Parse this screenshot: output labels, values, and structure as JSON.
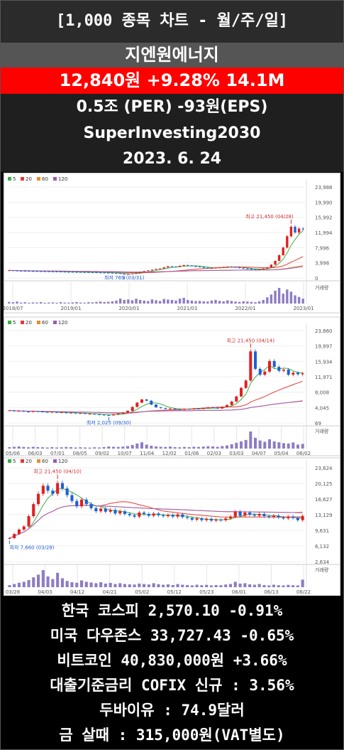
{
  "header": {
    "title": "[1,000 종목 차트 - 월/주/일]"
  },
  "stock": {
    "name": "지엔원에너지",
    "price_line": "12,840원  +9.28%  14.1M",
    "per_line": "0.5조  (PER)  -93원(EPS)",
    "channel": "SuperInvesting2030",
    "date": "2023. 6. 24"
  },
  "colors": {
    "up": "#e02020",
    "down": "#1f5fd6",
    "ma5": "#3cb043",
    "ma20": "#e53935",
    "ma60": "#f08a24",
    "ma120": "#9b59b6",
    "price_bar": "#ff0000"
  },
  "chart_data": [
    {
      "type": "candlestick",
      "period": "monthly",
      "legend": [
        "5",
        "20",
        "60",
        "120"
      ],
      "y_ticks": [
        0,
        3998,
        7996,
        11994,
        15992,
        19990,
        23988
      ],
      "ylim": [
        0,
        23988
      ],
      "x_ticks": [
        "2018/07",
        "2019/01",
        "2020/01",
        "2021/01",
        "2022/01",
        "2023/01"
      ],
      "high_annotation": "최고 21,450 (04/28)",
      "low_annotation": "최저 769 (03/31)",
      "volume_label": "거래량",
      "close_series": [
        2000,
        1950,
        1900,
        1880,
        1850,
        1820,
        1800,
        1780,
        1760,
        1750,
        1720,
        1700,
        1680,
        1650,
        1620,
        1600,
        1580,
        1560,
        1540,
        1520,
        1500,
        1480,
        1450,
        1420,
        1380,
        1350,
        1300,
        1250,
        1100,
        900,
        1050,
        1200,
        1400,
        1600,
        1800,
        2000,
        2200,
        2400,
        2500,
        2800,
        3100,
        3000,
        2900,
        3200,
        3400,
        3300,
        3100,
        3000,
        2900,
        2700,
        2500,
        2600,
        2700,
        2800,
        2900,
        3000,
        2900,
        2800,
        2600,
        2500,
        2400,
        2300,
        2200,
        2300,
        2500,
        2800,
        3500,
        4500,
        6000,
        8000,
        11000,
        13500,
        12000,
        13000,
        12840
      ],
      "volume_series": [
        10,
        8,
        12,
        6,
        8,
        5,
        7,
        6,
        9,
        5,
        6,
        7,
        5,
        8,
        6,
        5,
        7,
        9,
        6,
        5,
        8,
        7,
        10,
        12,
        9,
        11,
        14,
        18,
        30,
        22,
        25,
        20,
        30,
        22,
        18,
        15,
        25,
        20,
        16,
        28,
        24,
        22,
        18,
        30,
        35,
        22,
        18,
        15,
        16,
        14,
        12,
        18,
        22,
        16,
        14,
        20,
        16,
        12,
        10,
        14,
        12,
        10,
        8,
        14,
        22,
        38,
        55,
        78,
        95,
        60,
        85,
        72,
        50,
        40,
        30
      ]
    },
    {
      "type": "candlestick",
      "period": "weekly",
      "legend": [
        "5",
        "20",
        "60",
        "120"
      ],
      "y_ticks": [
        69,
        4045,
        8008,
        11971,
        15934,
        19897,
        23860
      ],
      "ylim": [
        69,
        23860
      ],
      "x_ticks": [
        "05/06",
        "06/03",
        "07/01",
        "08/05",
        "09/02",
        "10/07",
        "11/04",
        "12/02",
        "01/06",
        "02/03",
        "03/03",
        "04/07",
        "05/04",
        "06/02"
      ],
      "high_annotation": "최고 21,450 (04/14)",
      "low_annotation": "최저 2,025 (09/30)",
      "volume_label": "거래량",
      "close_series": [
        3300,
        3100,
        3200,
        3000,
        2900,
        3100,
        3000,
        2900,
        2800,
        2900,
        2700,
        2800,
        2600,
        2700,
        2500,
        2600,
        2400,
        2450,
        2300,
        2200,
        2100,
        2025,
        2300,
        2500,
        2800,
        3200,
        4200,
        5300,
        6100,
        5800,
        4800,
        4100,
        3900,
        3700,
        3800,
        3600,
        3500,
        3700,
        3600,
        3800,
        3700,
        3900,
        4100,
        4000,
        3800,
        4200,
        4700,
        5600,
        6900,
        9100,
        11000,
        18500,
        14000,
        12500,
        13300,
        16000,
        14500,
        13500,
        13800,
        12500,
        13000,
        12600,
        12840
      ],
      "volume_series": [
        8,
        10,
        12,
        9,
        7,
        10,
        8,
        7,
        6,
        8,
        6,
        7,
        9,
        8,
        6,
        7,
        6,
        5,
        7,
        6,
        8,
        12,
        10,
        9,
        11,
        14,
        20,
        28,
        35,
        22,
        16,
        12,
        10,
        9,
        11,
        8,
        7,
        9,
        8,
        10,
        9,
        11,
        13,
        12,
        10,
        14,
        18,
        24,
        32,
        40,
        48,
        95,
        60,
        45,
        38,
        52,
        40,
        35,
        30,
        28,
        34,
        22,
        26
      ]
    },
    {
      "type": "candlestick",
      "period": "daily",
      "legend": [
        "5",
        "20",
        "60",
        "120"
      ],
      "y_ticks": [
        2634,
        6132,
        9631,
        13129,
        16627,
        20125,
        23624
      ],
      "ylim": [
        2634,
        23624
      ],
      "x_ticks": [
        "03/28",
        "04/03",
        "04/12",
        "04/21",
        "05/02",
        "05/12",
        "05/23",
        "06/01",
        "06/13",
        "06/22"
      ],
      "high_annotation": "최고 21,450 (04/10)",
      "low_annotation": "최저 7,660 (03/28)",
      "volume_label": "거래량",
      "close_series": [
        7900,
        8800,
        9800,
        10500,
        12800,
        15500,
        17800,
        19600,
        18500,
        17800,
        20200,
        19000,
        17500,
        16200,
        15000,
        16500,
        15500,
        14600,
        13900,
        14500,
        13800,
        14200,
        13400,
        13900,
        13300,
        13000,
        12700,
        13600,
        13300,
        12900,
        13400,
        13000,
        12800,
        13100,
        12700,
        13200,
        12600,
        12400,
        12000,
        12300,
        11900,
        12200,
        11800,
        12000,
        11900,
        12300,
        12700,
        13800,
        12900,
        13600,
        13100,
        12900,
        13300,
        12800,
        12600,
        12900,
        12500,
        12300,
        12700,
        12400,
        11900,
        12840
      ],
      "volume_series": [
        12,
        18,
        25,
        30,
        40,
        55,
        70,
        95,
        60,
        45,
        80,
        50,
        35,
        28,
        25,
        38,
        30,
        26,
        22,
        28,
        20,
        24,
        18,
        22,
        18,
        16,
        15,
        20,
        18,
        15,
        22,
        17,
        14,
        16,
        12,
        18,
        14,
        12,
        10,
        14,
        11,
        13,
        10,
        12,
        11,
        15,
        18,
        30,
        20,
        22,
        16,
        14,
        18,
        12,
        10,
        14,
        11,
        10,
        13,
        11,
        10,
        42
      ]
    }
  ],
  "market": {
    "kospi": "한국 코스피  2,570.10  -0.91%",
    "dow": "미국 다우존스  33,727.43  -0.65%",
    "btc": "비트코인  40,830,000원  +3.66%",
    "cofix": "대출기준금리 COFIX 신규 : 3.56%",
    "dubai": "두바이유 : 74.9달러",
    "gold": "금 살때 : 315,000원(VAT별도)"
  }
}
